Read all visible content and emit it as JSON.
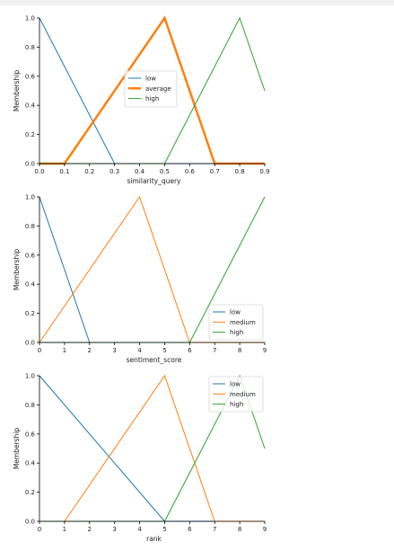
{
  "chart_data": [
    {
      "type": "line",
      "xlabel": "similarity_query",
      "ylabel": "Membership",
      "xlim": [
        0.0,
        0.9
      ],
      "ylim": [
        0.0,
        1.0
      ],
      "xticks": [
        "0.0",
        "0.1",
        "0.2",
        "0.3",
        "0.4",
        "0.5",
        "0.6",
        "0.7",
        "0.8",
        "0.9"
      ],
      "yticks": [
        "0.0",
        "0.2",
        "0.4",
        "0.6",
        "0.8",
        "1.0"
      ],
      "legend_position": "center",
      "series": [
        {
          "name": "low",
          "color": "#1f77b4",
          "highlight": false,
          "x": [
            0.0,
            0.3,
            0.9
          ],
          "y": [
            1.0,
            0.0,
            0.0
          ]
        },
        {
          "name": "average",
          "color": "#ff7f0e",
          "highlight": true,
          "x": [
            0.0,
            0.1,
            0.5,
            0.7,
            0.9
          ],
          "y": [
            0.0,
            0.0,
            1.0,
            0.0,
            0.0
          ]
        },
        {
          "name": "high",
          "color": "#2ca02c",
          "highlight": false,
          "x": [
            0.0,
            0.5,
            0.8,
            0.9
          ],
          "y": [
            0.0,
            0.0,
            1.0,
            0.5
          ]
        }
      ]
    },
    {
      "type": "line",
      "xlabel": "sentiment_score",
      "ylabel": "Membership",
      "xlim": [
        0,
        9
      ],
      "ylim": [
        0.0,
        1.0
      ],
      "xticks": [
        "0",
        "1",
        "2",
        "3",
        "4",
        "5",
        "6",
        "7",
        "8",
        "9"
      ],
      "yticks": [
        "0.0",
        "0.2",
        "0.4",
        "0.6",
        "0.8",
        "1.0"
      ],
      "legend_position": "bottom-right",
      "series": [
        {
          "name": "low",
          "color": "#1f77b4",
          "highlight": false,
          "x": [
            0,
            2,
            9
          ],
          "y": [
            1.0,
            0.0,
            0.0
          ]
        },
        {
          "name": "medium",
          "color": "#ff7f0e",
          "highlight": false,
          "x": [
            0,
            4,
            6,
            9
          ],
          "y": [
            0.0,
            1.0,
            0.0,
            0.0
          ]
        },
        {
          "name": "high",
          "color": "#2ca02c",
          "highlight": false,
          "x": [
            0,
            6,
            9
          ],
          "y": [
            0.0,
            0.0,
            1.0
          ]
        }
      ]
    },
    {
      "type": "line",
      "xlabel": "rank",
      "ylabel": "Membership",
      "xlim": [
        0,
        9
      ],
      "ylim": [
        0.0,
        1.0
      ],
      "xticks": [
        "0",
        "1",
        "2",
        "3",
        "4",
        "5",
        "6",
        "7",
        "8",
        "9"
      ],
      "yticks": [
        "0.0",
        "0.2",
        "0.4",
        "0.6",
        "0.8",
        "1.0"
      ],
      "legend_position": "top-right",
      "series": [
        {
          "name": "low",
          "color": "#1f77b4",
          "highlight": false,
          "x": [
            0,
            5,
            9
          ],
          "y": [
            1.0,
            0.0,
            0.0
          ]
        },
        {
          "name": "medium",
          "color": "#ff7f0e",
          "highlight": false,
          "x": [
            0,
            1,
            5,
            7,
            9
          ],
          "y": [
            0.0,
            0.0,
            1.0,
            0.0,
            0.0
          ]
        },
        {
          "name": "high",
          "color": "#2ca02c",
          "highlight": false,
          "x": [
            0,
            5,
            8,
            9
          ],
          "y": [
            0.0,
            0.0,
            1.0,
            0.5
          ]
        }
      ]
    }
  ]
}
